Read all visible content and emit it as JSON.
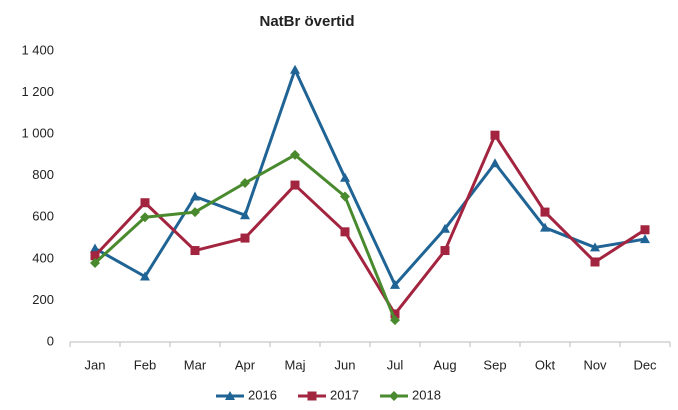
{
  "chart_data": {
    "type": "line",
    "title": "NatBr övertid",
    "categories": [
      "Jan",
      "Feb",
      "Mar",
      "Apr",
      "Maj",
      "Jun",
      "Jul",
      "Aug",
      "Sep",
      "Okt",
      "Nov",
      "Dec"
    ],
    "series": [
      {
        "name": "2016",
        "color": "#1f6494",
        "marker": "triangle",
        "values": [
          450,
          315,
          700,
          610,
          1310,
          790,
          275,
          545,
          860,
          550,
          455,
          495
        ]
      },
      {
        "name": "2017",
        "color": "#a3243f",
        "marker": "square",
        "values": [
          415,
          670,
          440,
          500,
          755,
          530,
          135,
          440,
          995,
          625,
          385,
          540
        ]
      },
      {
        "name": "2018",
        "color": "#4a8a2e",
        "marker": "diamond",
        "values": [
          380,
          600,
          625,
          765,
          900,
          700,
          105,
          null,
          null,
          null,
          null,
          null
        ]
      }
    ],
    "ylim": [
      0,
      1400
    ],
    "yticks": [
      0,
      200,
      400,
      600,
      800,
      {
        "value": 1000,
        "label": "1 000"
      },
      {
        "value": 1200,
        "label": "1 200"
      },
      {
        "value": 1400,
        "label": "1 400"
      }
    ],
    "grid": false,
    "legend": "bottom"
  }
}
